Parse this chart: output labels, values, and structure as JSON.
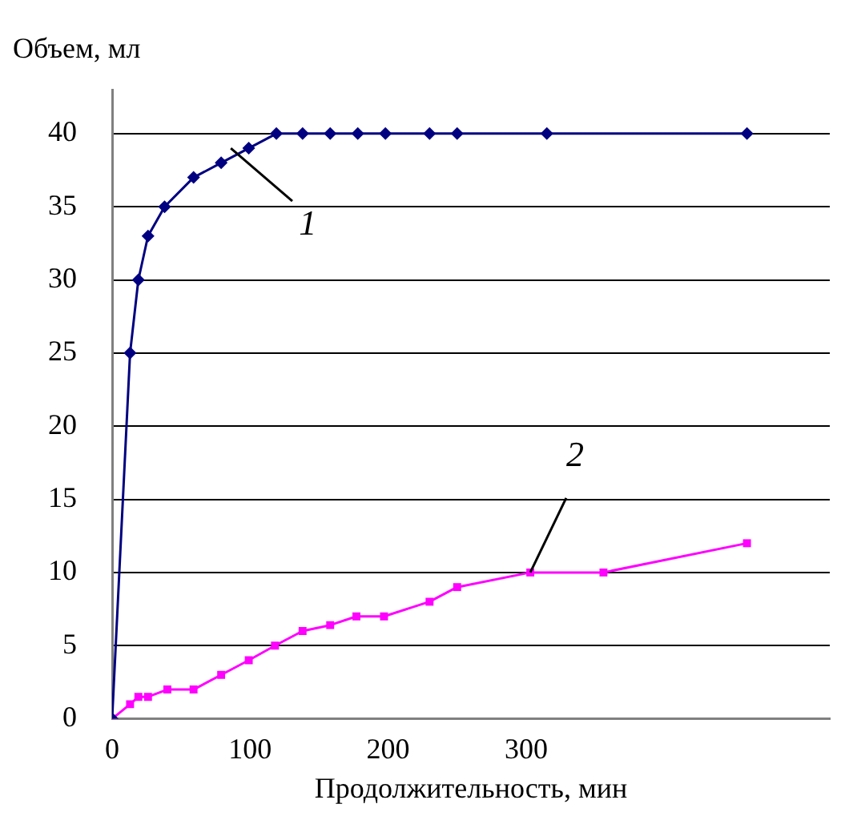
{
  "chart_data": {
    "type": "line",
    "ylabel": "Объем, мл",
    "xlabel": "Продолжительность, мин",
    "xlim": [
      0,
      520
    ],
    "xticks": [
      0,
      100,
      200,
      300
    ],
    "ylim": [
      0,
      43
    ],
    "yticks": [
      0,
      5,
      10,
      15,
      20,
      25,
      30,
      35,
      40
    ],
    "grid": "y",
    "legend": false,
    "series": [
      {
        "color": "#000080",
        "marker": "diamond",
        "x": [
          0,
          13,
          19,
          26,
          38,
          59,
          79,
          99,
          119,
          138,
          158,
          178,
          198,
          230,
          250,
          315,
          460
        ],
        "values": [
          0,
          25,
          30,
          33,
          35,
          37,
          38,
          39,
          40,
          40,
          40,
          40,
          40,
          40,
          40,
          40,
          40
        ]
      },
      {
        "color": "#ff00ff",
        "marker": "square",
        "x": [
          0,
          13,
          19,
          26,
          40,
          59,
          79,
          99,
          118,
          138,
          158,
          177,
          197,
          230,
          250,
          303,
          356,
          460
        ],
        "values": [
          0,
          1,
          1.5,
          1.5,
          2,
          2,
          3,
          4,
          5,
          6,
          6.4,
          7,
          7,
          8,
          9,
          10,
          10,
          12
        ]
      }
    ],
    "annotations": [
      {
        "text": "1",
        "x": 86,
        "y": 39
      },
      {
        "text": "2",
        "x": 303,
        "y": 10
      }
    ]
  }
}
